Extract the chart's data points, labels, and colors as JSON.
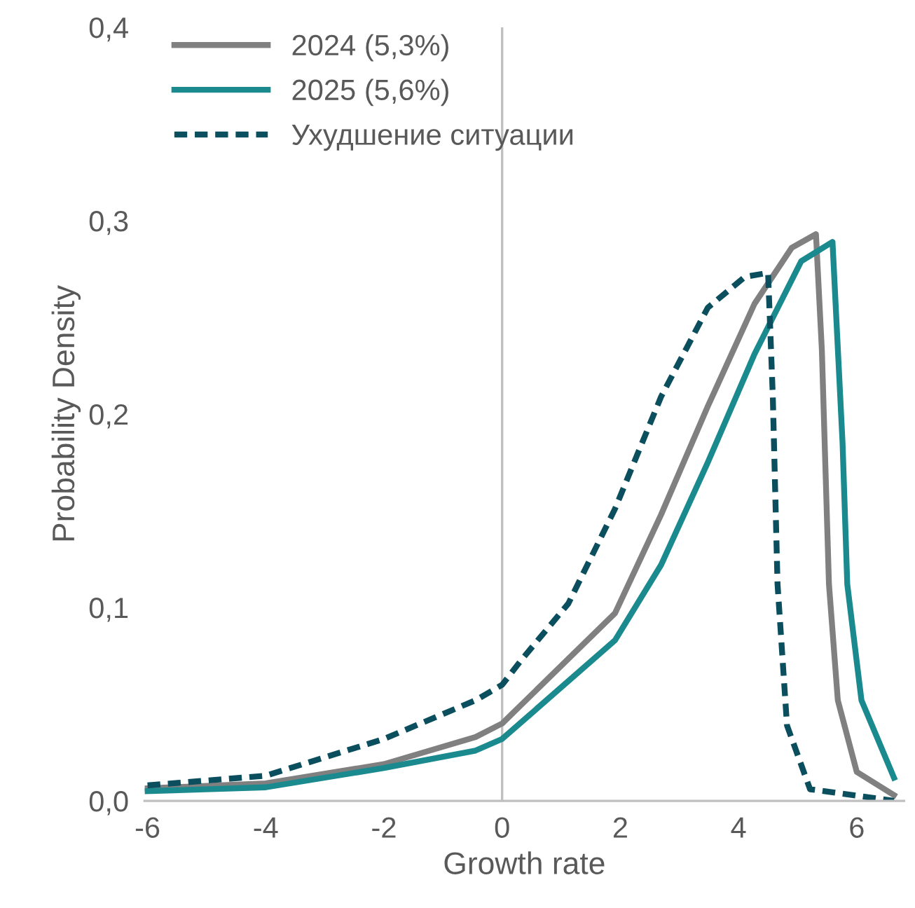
{
  "chart_data": {
    "type": "line",
    "xlabel": "Growth rate",
    "ylabel": "Probability Density",
    "xlim": [
      -6.05,
      6.8
    ],
    "xticks": [
      -6,
      -4,
      -2,
      0,
      2,
      4,
      6
    ],
    "ylim": [
      0,
      0.4
    ],
    "yticks": [
      {
        "value": 0,
        "label": "0,0"
      },
      {
        "value": 0.1,
        "label": "0,1"
      },
      {
        "value": 0.2,
        "label": "0,2"
      },
      {
        "value": 0.3,
        "label": "0,3"
      },
      {
        "value": 0.4,
        "label": "0,4"
      }
    ],
    "grid": false,
    "legend": "top left",
    "ref_lines": [
      {
        "axis": "x",
        "value": 0,
        "color": "#bfbfbf"
      }
    ],
    "series": [
      {
        "name": "2024 (5,3%)",
        "color": "#808080",
        "line_style": "solid",
        "x": [
          -6,
          -4,
          -2,
          -0.45,
          0,
          1.91,
          2.69,
          3.48,
          4.27,
          4.9,
          5.31,
          5.41,
          5.53,
          5.68,
          6.0,
          6.63
        ],
        "values": [
          0.0065,
          0.009,
          0.019,
          0.033,
          0.04,
          0.097,
          0.148,
          0.204,
          0.257,
          0.286,
          0.293,
          0.233,
          0.112,
          0.052,
          0.015,
          0.003
        ]
      },
      {
        "name": "2025 (5,6%)",
        "color": "#1a8a8f",
        "line_style": "solid",
        "x": [
          -6,
          -4,
          -2,
          -0.45,
          0,
          1.91,
          2.69,
          3.48,
          4.27,
          5.06,
          5.59,
          5.76,
          5.84,
          6.08,
          6.63
        ],
        "values": [
          0.005,
          0.007,
          0.017,
          0.026,
          0.032,
          0.083,
          0.122,
          0.175,
          0.231,
          0.279,
          0.289,
          0.185,
          0.112,
          0.052,
          0.012
        ]
      },
      {
        "name": "Ухудшение ситуации",
        "color": "#0b4f5e",
        "line_style": "dashed",
        "x": [
          -6,
          -4,
          -2,
          -0.45,
          0,
          0.33,
          1.12,
          1.91,
          2.69,
          3.48,
          4.11,
          4.5,
          4.58,
          4.66,
          4.82,
          5.21,
          6.63
        ],
        "values": [
          0.008,
          0.013,
          0.032,
          0.052,
          0.06,
          0.073,
          0.102,
          0.151,
          0.209,
          0.255,
          0.271,
          0.273,
          0.209,
          0.112,
          0.039,
          0.006,
          0.0
        ]
      }
    ]
  }
}
